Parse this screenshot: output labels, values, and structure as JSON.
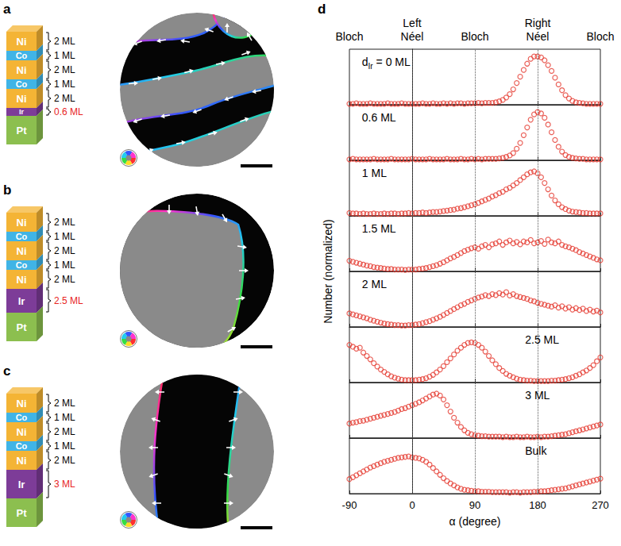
{
  "panels": [
    {
      "letter": "a",
      "layers": [
        {
          "material": "Ni",
          "thickness": "2 ML"
        },
        {
          "material": "Co",
          "thickness": "1 ML"
        },
        {
          "material": "Ni",
          "thickness": "2 ML"
        },
        {
          "material": "Co",
          "thickness": "1 ML"
        },
        {
          "material": "Ni",
          "thickness": "2 ML"
        },
        {
          "material": "Ir",
          "thickness": "0.6 ML"
        },
        {
          "material": "Pt"
        }
      ]
    },
    {
      "letter": "b",
      "layers": [
        {
          "material": "Ni",
          "thickness": "2 ML"
        },
        {
          "material": "Co",
          "thickness": "1 ML"
        },
        {
          "material": "Ni",
          "thickness": "2 ML"
        },
        {
          "material": "Co",
          "thickness": "1 ML"
        },
        {
          "material": "Ni",
          "thickness": "2 ML"
        },
        {
          "material": "Ir",
          "thickness": "2.5 ML"
        },
        {
          "material": "Pt"
        }
      ]
    },
    {
      "letter": "c",
      "layers": [
        {
          "material": "Ni",
          "thickness": "2 ML"
        },
        {
          "material": "Co",
          "thickness": "1 ML"
        },
        {
          "material": "Ni",
          "thickness": "2 ML"
        },
        {
          "material": "Co",
          "thickness": "1 ML"
        },
        {
          "material": "Ni",
          "thickness": "2 ML"
        },
        {
          "material": "Ir",
          "thickness": "3 ML"
        },
        {
          "material": "Pt"
        }
      ]
    }
  ],
  "materials": {
    "Ni": "#f4b435",
    "Co": "#40b4e6",
    "Ir": "#7d3c98",
    "Pt": "#8cbf4f"
  },
  "highlight_material": "Ir",
  "highlight_color": "#e8251f",
  "chart_letter": "d",
  "chart_data": {
    "type": "scatter",
    "marker": "open_circle",
    "color": "#e53a2f",
    "grid": false,
    "tick_labels": "x",
    "x_label": "α (degree)",
    "y_label": "Number (normalized)",
    "xlim": [
      -90,
      270
    ],
    "xticks": [
      -90,
      0,
      90,
      180,
      270
    ],
    "ylim": [
      0,
      1.15
    ],
    "x_annotations": [
      {
        "value": -90,
        "label": "Bloch"
      },
      {
        "value": 0,
        "label": "Left Néel"
      },
      {
        "value": 90,
        "label": "Bloch"
      },
      {
        "value": 180,
        "label": "Right Néel"
      },
      {
        "value": 270,
        "label": "Bloch"
      }
    ],
    "x": [
      -90,
      -85,
      -80,
      -75,
      -70,
      -65,
      -60,
      -55,
      -50,
      -45,
      -40,
      -35,
      -30,
      -25,
      -20,
      -15,
      -10,
      -5,
      0,
      5,
      10,
      15,
      20,
      25,
      30,
      35,
      40,
      45,
      50,
      55,
      60,
      65,
      70,
      75,
      80,
      85,
      90,
      95,
      100,
      105,
      110,
      115,
      120,
      125,
      130,
      135,
      140,
      145,
      150,
      155,
      160,
      165,
      170,
      175,
      180,
      185,
      190,
      195,
      200,
      205,
      210,
      215,
      220,
      225,
      230,
      235,
      240,
      245,
      250,
      255,
      260,
      265,
      270
    ],
    "series": [
      {
        "name": "dIr = 0 ML",
        "subscript": "Ir",
        "values": [
          0.02,
          0.02,
          0.03,
          0.02,
          0.02,
          0.02,
          0.03,
          0.02,
          0.02,
          0.02,
          0.02,
          0.03,
          0.02,
          0.02,
          0.02,
          0.03,
          0.02,
          0.02,
          0.02,
          0.02,
          0.02,
          0.03,
          0.02,
          0.02,
          0.03,
          0.02,
          0.02,
          0.03,
          0.02,
          0.03,
          0.02,
          0.03,
          0.03,
          0.02,
          0.03,
          0.03,
          0.03,
          0.04,
          0.03,
          0.04,
          0.04,
          0.04,
          0.05,
          0.07,
          0.1,
          0.15,
          0.22,
          0.32,
          0.45,
          0.58,
          0.72,
          0.85,
          0.95,
          1.0,
          1.0,
          0.98,
          0.92,
          0.82,
          0.7,
          0.56,
          0.42,
          0.3,
          0.2,
          0.13,
          0.08,
          0.05,
          0.04,
          0.03,
          0.02,
          0.02,
          0.02,
          0.02,
          0.02
        ]
      },
      {
        "name": "0.6 ML",
        "values": [
          0.02,
          0.03,
          0.02,
          0.02,
          0.02,
          0.02,
          0.02,
          0.03,
          0.02,
          0.02,
          0.02,
          0.02,
          0.03,
          0.02,
          0.02,
          0.02,
          0.02,
          0.02,
          0.03,
          0.02,
          0.02,
          0.02,
          0.02,
          0.03,
          0.02,
          0.02,
          0.02,
          0.02,
          0.03,
          0.02,
          0.02,
          0.02,
          0.03,
          0.02,
          0.02,
          0.03,
          0.02,
          0.03,
          0.02,
          0.03,
          0.03,
          0.03,
          0.03,
          0.04,
          0.05,
          0.07,
          0.1,
          0.15,
          0.24,
          0.36,
          0.52,
          0.68,
          0.84,
          0.95,
          1.0,
          0.97,
          0.88,
          0.74,
          0.58,
          0.42,
          0.28,
          0.18,
          0.11,
          0.07,
          0.05,
          0.04,
          0.03,
          0.03,
          0.02,
          0.02,
          0.02,
          0.02,
          0.02
        ]
      },
      {
        "name": "1 ML",
        "values": [
          0.06,
          0.05,
          0.05,
          0.04,
          0.05,
          0.04,
          0.04,
          0.05,
          0.04,
          0.04,
          0.05,
          0.04,
          0.05,
          0.05,
          0.04,
          0.05,
          0.05,
          0.06,
          0.05,
          0.06,
          0.06,
          0.07,
          0.06,
          0.07,
          0.08,
          0.08,
          0.09,
          0.1,
          0.11,
          0.12,
          0.13,
          0.15,
          0.16,
          0.18,
          0.2,
          0.22,
          0.24,
          0.27,
          0.3,
          0.33,
          0.36,
          0.4,
          0.43,
          0.47,
          0.5,
          0.55,
          0.58,
          0.63,
          0.68,
          0.74,
          0.8,
          0.86,
          0.9,
          0.92,
          0.88,
          0.8,
          0.68,
          0.55,
          0.42,
          0.32,
          0.24,
          0.18,
          0.14,
          0.11,
          0.09,
          0.08,
          0.07,
          0.06,
          0.06,
          0.05,
          0.05,
          0.05,
          0.05
        ]
      },
      {
        "name": "1.5 ML",
        "values": [
          0.22,
          0.2,
          0.18,
          0.16,
          0.14,
          0.12,
          0.11,
          0.09,
          0.08,
          0.07,
          0.06,
          0.05,
          0.05,
          0.04,
          0.04,
          0.04,
          0.03,
          0.04,
          0.04,
          0.04,
          0.05,
          0.06,
          0.07,
          0.09,
          0.11,
          0.13,
          0.16,
          0.19,
          0.23,
          0.27,
          0.3,
          0.34,
          0.38,
          0.42,
          0.45,
          0.48,
          0.5,
          0.47,
          0.52,
          0.55,
          0.5,
          0.56,
          0.58,
          0.62,
          0.55,
          0.6,
          0.64,
          0.58,
          0.61,
          0.56,
          0.62,
          0.6,
          0.65,
          0.58,
          0.6,
          0.63,
          0.57,
          0.66,
          0.6,
          0.58,
          0.62,
          0.55,
          0.52,
          0.5,
          0.47,
          0.44,
          0.4,
          0.37,
          0.34,
          0.31,
          0.28,
          0.25,
          0.23
        ]
      },
      {
        "name": "2 ML",
        "values": [
          0.28,
          0.26,
          0.24,
          0.22,
          0.2,
          0.18,
          0.15,
          0.13,
          0.11,
          0.09,
          0.07,
          0.06,
          0.05,
          0.04,
          0.04,
          0.03,
          0.03,
          0.04,
          0.04,
          0.05,
          0.06,
          0.08,
          0.1,
          0.12,
          0.15,
          0.18,
          0.21,
          0.25,
          0.29,
          0.33,
          0.37,
          0.41,
          0.45,
          0.48,
          0.52,
          0.55,
          0.58,
          0.61,
          0.63,
          0.66,
          0.64,
          0.68,
          0.66,
          0.7,
          0.67,
          0.72,
          0.65,
          0.68,
          0.64,
          0.62,
          0.6,
          0.58,
          0.55,
          0.53,
          0.5,
          0.48,
          0.46,
          0.44,
          0.42,
          0.45,
          0.4,
          0.43,
          0.38,
          0.41,
          0.36,
          0.39,
          0.35,
          0.38,
          0.33,
          0.36,
          0.32,
          0.34,
          0.3
        ]
      },
      {
        "name": "2.5 ML",
        "values": [
          0.78,
          0.74,
          0.7,
          0.72,
          0.62,
          0.55,
          0.48,
          0.4,
          0.33,
          0.27,
          0.22,
          0.17,
          0.13,
          0.1,
          0.08,
          0.06,
          0.05,
          0.05,
          0.05,
          0.05,
          0.06,
          0.07,
          0.09,
          0.12,
          0.16,
          0.21,
          0.27,
          0.34,
          0.42,
          0.5,
          0.58,
          0.66,
          0.72,
          0.78,
          0.82,
          0.83,
          0.82,
          0.78,
          0.72,
          0.64,
          0.55,
          0.46,
          0.38,
          0.3,
          0.24,
          0.18,
          0.14,
          0.11,
          0.08,
          0.06,
          0.05,
          0.04,
          0.04,
          0.03,
          0.03,
          0.03,
          0.03,
          0.03,
          0.04,
          0.04,
          0.05,
          0.06,
          0.07,
          0.09,
          0.11,
          0.14,
          0.17,
          0.21,
          0.25,
          0.3,
          0.36,
          0.44,
          0.52
        ]
      },
      {
        "name": "3 ML",
        "values": [
          0.3,
          0.32,
          0.33,
          0.35,
          0.36,
          0.38,
          0.4,
          0.42,
          0.44,
          0.46,
          0.48,
          0.5,
          0.52,
          0.54,
          0.57,
          0.6,
          0.62,
          0.65,
          0.68,
          0.71,
          0.74,
          0.78,
          0.82,
          0.86,
          0.9,
          0.92,
          0.88,
          0.8,
          0.68,
          0.55,
          0.42,
          0.32,
          0.23,
          0.16,
          0.11,
          0.08,
          0.06,
          0.05,
          0.04,
          0.04,
          0.03,
          0.03,
          0.03,
          0.03,
          0.02,
          0.03,
          0.02,
          0.02,
          0.03,
          0.02,
          0.02,
          0.03,
          0.02,
          0.02,
          0.03,
          0.02,
          0.03,
          0.03,
          0.04,
          0.05,
          0.06,
          0.07,
          0.08,
          0.1,
          0.12,
          0.14,
          0.16,
          0.18,
          0.2,
          0.22,
          0.24,
          0.26,
          0.28
        ]
      },
      {
        "name": "Bulk",
        "values": [
          0.3,
          0.34,
          0.38,
          0.42,
          0.46,
          0.5,
          0.54,
          0.57,
          0.6,
          0.63,
          0.66,
          0.68,
          0.7,
          0.72,
          0.74,
          0.75,
          0.76,
          0.77,
          0.75,
          0.74,
          0.73,
          0.7,
          0.66,
          0.6,
          0.53,
          0.46,
          0.39,
          0.32,
          0.26,
          0.21,
          0.17,
          0.13,
          0.1,
          0.08,
          0.07,
          0.06,
          0.05,
          0.05,
          0.04,
          0.04,
          0.04,
          0.03,
          0.03,
          0.03,
          0.03,
          0.03,
          0.02,
          0.03,
          0.03,
          0.02,
          0.03,
          0.03,
          0.03,
          0.04,
          0.04,
          0.05,
          0.05,
          0.06,
          0.07,
          0.08,
          0.09,
          0.1,
          0.11,
          0.13,
          0.15,
          0.17,
          0.19,
          0.21,
          0.23,
          0.25,
          0.27,
          0.29,
          0.31
        ]
      }
    ]
  }
}
